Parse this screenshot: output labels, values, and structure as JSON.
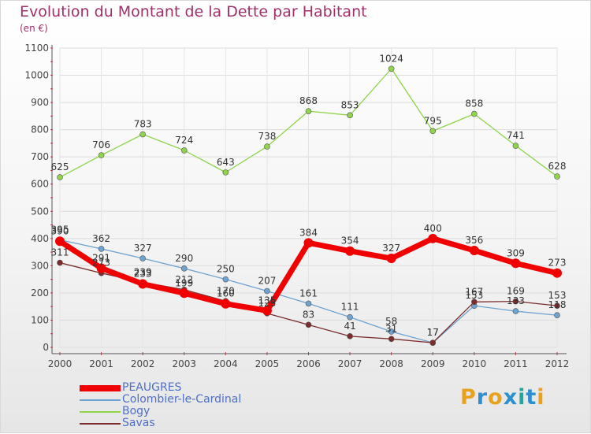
{
  "title": "Evolution du Montant de la Dette par Habitant",
  "subtitle": "(en €)",
  "logo": {
    "text": "Proxiti",
    "colors": [
      "#e8a21e",
      "#2d8fd0",
      "#e8a21e",
      "#2d8fd0",
      "#1fa8a0",
      "#2d8fd0",
      "#e8a21e"
    ]
  },
  "chart_data": {
    "type": "line",
    "title": "Evolution du Montant de la Dette par Habitant",
    "subtitle": "(en €)",
    "xlabel": "",
    "ylabel": "",
    "x": [
      "2000",
      "2001",
      "2002",
      "2003",
      "2004",
      "2005",
      "2006",
      "2007",
      "2008",
      "2009",
      "2010",
      "2011",
      "2012"
    ],
    "ylim": [
      0,
      1100
    ],
    "yticks": [
      0,
      100,
      200,
      300,
      400,
      500,
      600,
      700,
      800,
      900,
      1000,
      1100
    ],
    "grid": true,
    "legend_position": "bottom-left",
    "series": [
      {
        "name": "PEAUGRES",
        "color": "#f00000",
        "values": [
          390,
          291,
          233,
          199,
          160,
          135,
          384,
          354,
          327,
          400,
          356,
          309,
          273
        ]
      },
      {
        "name": "Colombier-le-Cardinal",
        "color": "#6fa3d0",
        "values": [
          395,
          362,
          327,
          290,
          250,
          207,
          161,
          111,
          58,
          17,
          153,
          133,
          118
        ]
      },
      {
        "name": "Bogy",
        "color": "#8fd44b",
        "values": [
          625,
          706,
          783,
          724,
          643,
          738,
          868,
          853,
          1024,
          795,
          858,
          741,
          628
        ]
      },
      {
        "name": "Savas",
        "color": "#7b2d2d",
        "values": [
          311,
          273,
          239,
          212,
          170,
          125,
          83,
          41,
          31,
          17,
          167,
          169,
          153
        ]
      }
    ]
  }
}
